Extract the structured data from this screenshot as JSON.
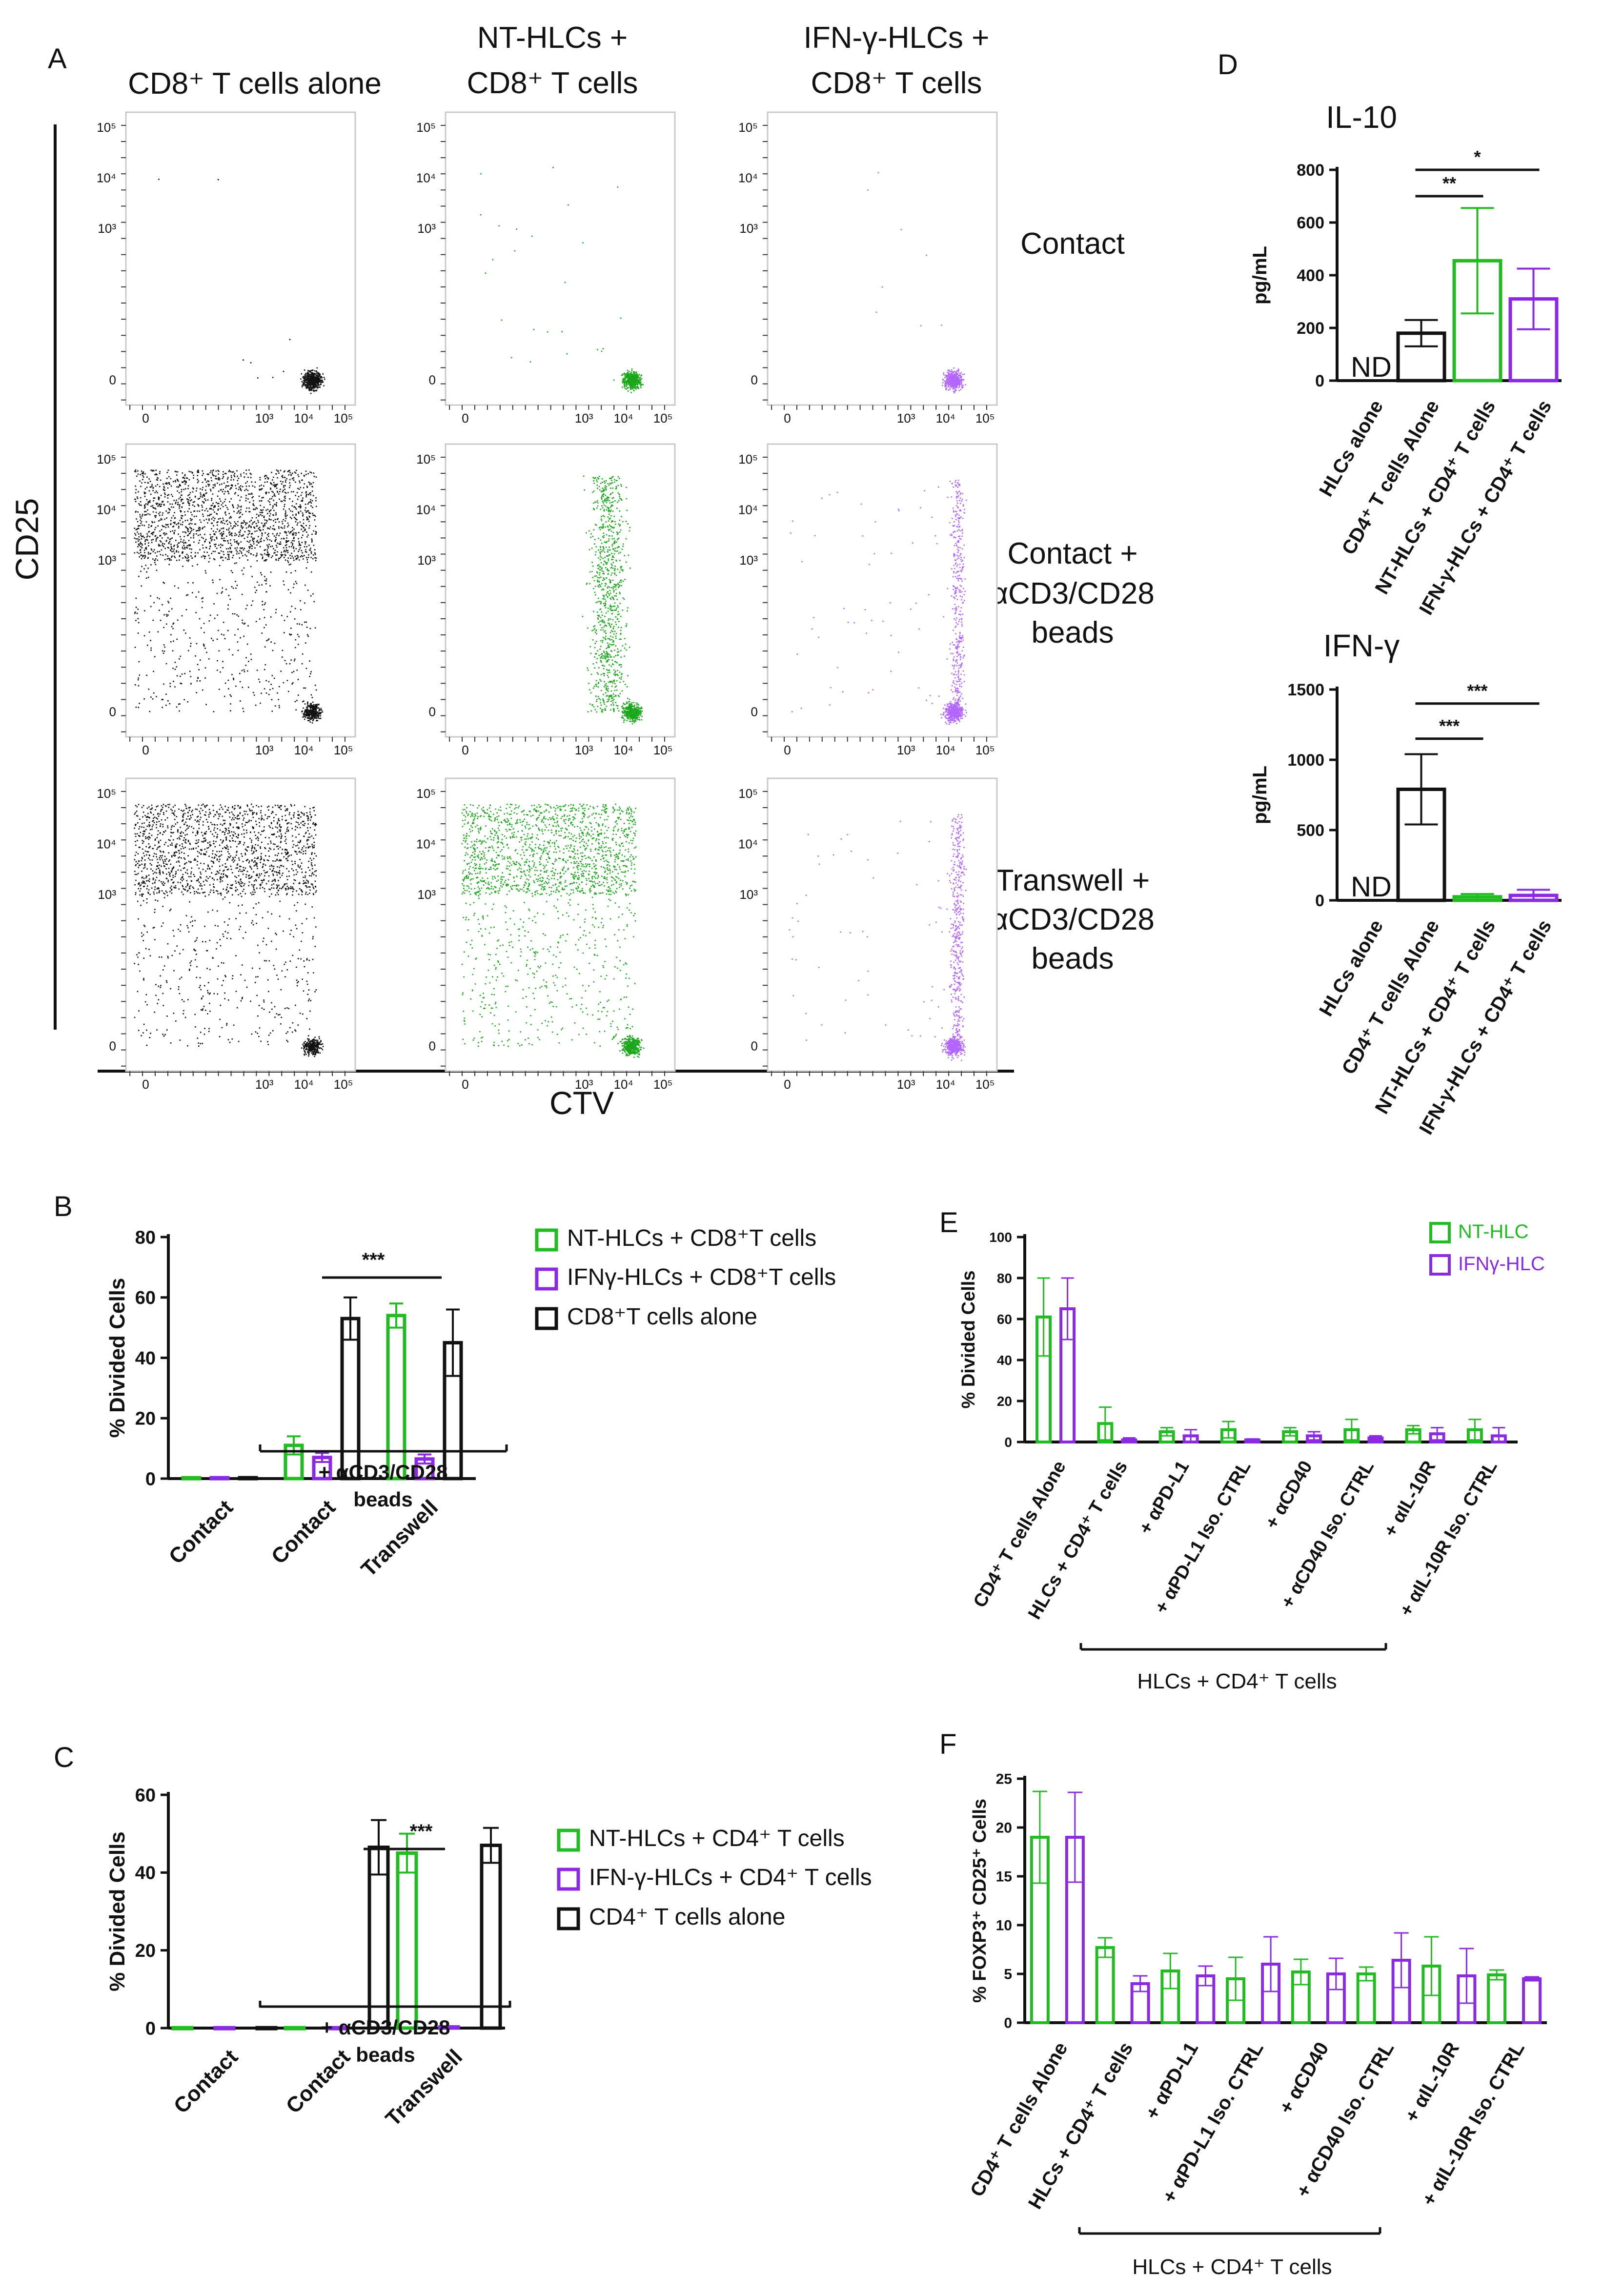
{
  "colors": {
    "black": "#111111",
    "green": "#22bb22",
    "purple": "#8a2be2",
    "dot_purple": "#b266ff",
    "dot_green": "#1aa81a"
  },
  "chart_data": [
    {
      "panel": "A",
      "type": "scatter",
      "description_label": "A",
      "column_titles": [
        [
          "CD8⁺ T cells alone"
        ],
        [
          "NT-HLCs +",
          "CD8⁺ T cells"
        ],
        [
          "IFN-γ-HLCs +",
          "CD8⁺ T cells"
        ]
      ],
      "row_labels": [
        [
          "Contact"
        ],
        [
          "Contact +",
          "αCD3/CD28",
          "beads"
        ],
        [
          "Transwell +",
          "αCD3/CD28",
          "beads"
        ]
      ],
      "xlabel": "CTV",
      "ylabel": "CD25",
      "x_ticks": [
        "0",
        "10³",
        "10⁴",
        "10⁵"
      ],
      "y_ticks": [
        "0",
        "10³",
        "10⁴",
        "10⁵"
      ],
      "xlim": [
        -0.5,
        5.3
      ],
      "ylim": [
        -0.5,
        5.3
      ],
      "series_colors": [
        "black",
        "green",
        "purple"
      ]
    },
    {
      "panel": "B",
      "type": "bar",
      "title": "",
      "ylabel": "% Divided Cells",
      "ylim": [
        0,
        80
      ],
      "yticks": [
        0,
        20,
        40,
        60,
        80
      ],
      "categories": [
        "Contact",
        "Contact",
        "Transwell"
      ],
      "bracket_label": [
        "+ αCD3/CD28",
        "beads"
      ],
      "series": [
        {
          "name": "NT-HLCs + CD8⁺T cells",
          "color": "green",
          "values": [
            0.3,
            11,
            54
          ],
          "errors": [
            0.2,
            3,
            4
          ]
        },
        {
          "name": "IFNγ-HLCs + CD8⁺T cells",
          "color": "purple",
          "values": [
            0.3,
            7,
            6.5
          ],
          "errors": [
            0.2,
            1.5,
            1.5
          ]
        },
        {
          "name": "CD8⁺T cells alone",
          "color": "black",
          "values": [
            0.3,
            53,
            45
          ],
          "errors": [
            0.2,
            7,
            11
          ]
        }
      ],
      "significance": {
        "label": "***",
        "from": "Contact",
        "to": "Transwell",
        "y": 66
      }
    },
    {
      "panel": "C",
      "type": "bar",
      "ylabel": "% Divided Cells",
      "ylim": [
        0,
        60
      ],
      "yticks": [
        0,
        20,
        40,
        60
      ],
      "categories": [
        "Contact",
        "Contact",
        "Transwell"
      ],
      "bracket_label": [
        "+ αCD3/CD28",
        "beads"
      ],
      "series": [
        {
          "name": "NT-HLCs + CD4⁺ T cells",
          "color": "green",
          "values": [
            0.1,
            0.1,
            45
          ],
          "errors": [
            0,
            0,
            5
          ]
        },
        {
          "name": "IFN-γ-HLCs + CD4⁺ T cells",
          "color": "purple",
          "values": [
            0.1,
            0.1,
            0.3
          ],
          "errors": [
            0,
            0,
            0.1
          ]
        },
        {
          "name": "CD4⁺ T cells alone",
          "color": "black",
          "values": [
            0.1,
            46.5,
            47
          ],
          "errors": [
            0,
            7,
            4.5
          ]
        }
      ],
      "significance": {
        "label": "***",
        "y": 58
      }
    },
    {
      "panel": "D",
      "title": "IL-10",
      "type": "bar",
      "ylabel": "pg/mL",
      "ylim": [
        0,
        800
      ],
      "yticks": [
        0,
        200,
        400,
        600,
        800
      ],
      "categories": [
        "HLCs alone",
        "CD4⁺ T cells Alone",
        "NT-HLCs + CD4⁺ T cells",
        "IFN-γ-HLCs + CD4⁺ T cells"
      ],
      "values": [
        0,
        180,
        455,
        310
      ],
      "errors": [
        0,
        50,
        200,
        115
      ],
      "colors": [
        "black",
        "black",
        "green",
        "purple"
      ],
      "nd_label": "ND",
      "significance": [
        {
          "label": "**",
          "from": 1,
          "to": 2,
          "y": 700
        },
        {
          "label": "*",
          "from": 1,
          "to": 3,
          "y": 800
        }
      ]
    },
    {
      "panel": "D2",
      "title": "IFN-γ",
      "type": "bar",
      "ylabel": "pg/mL",
      "ylim": [
        0,
        1500
      ],
      "yticks": [
        0,
        500,
        1000,
        1500
      ],
      "categories": [
        "HLCs alone",
        "CD4⁺ T cells Alone",
        "NT-HLCs + CD4⁺ T cells",
        "IFN-γ-HLCs + CD4⁺ T cells"
      ],
      "values": [
        0,
        790,
        25,
        35
      ],
      "errors": [
        0,
        250,
        20,
        40
      ],
      "colors": [
        "black",
        "black",
        "green",
        "purple"
      ],
      "nd_label": "ND",
      "significance": [
        {
          "label": "***",
          "from": 1,
          "to": 2,
          "y": 1150
        },
        {
          "label": "***",
          "from": 1,
          "to": 3,
          "y": 1400
        }
      ]
    },
    {
      "panel": "E",
      "type": "bar",
      "ylabel": "% Divided Cells",
      "ylim": [
        0,
        100
      ],
      "yticks": [
        0,
        20,
        40,
        60,
        80,
        100
      ],
      "categories": [
        "CD4⁺ T cells  Alone",
        "HLCs + CD4⁺ T cells",
        "+ αPD-L1",
        "+ αPD-L1 Iso. CTRL",
        "+ αCD40",
        "+ αCD40 Iso. CTRL",
        "+ αIL-10R",
        "+ αIL-10R Iso. CTRL"
      ],
      "series": [
        {
          "name": "NT-HLC",
          "color": "green",
          "values": [
            61,
            9,
            5,
            6,
            5,
            6,
            6,
            6
          ],
          "errors": [
            19,
            8,
            2,
            4,
            2,
            5,
            2,
            5
          ]
        },
        {
          "name": "IFNγ-HLC",
          "color": "purple",
          "values": [
            65,
            1,
            3,
            1,
            3,
            2,
            4,
            3
          ],
          "errors": [
            15,
            1,
            3,
            0.5,
            2,
            1,
            3,
            4
          ]
        }
      ],
      "bracket_label": "HLCs + CD4⁺ T cells"
    },
    {
      "panel": "F",
      "type": "bar",
      "ylabel": "% FOXP3⁺ CD25⁺ Cells",
      "ylim": [
        0,
        25
      ],
      "yticks": [
        0,
        5,
        10,
        15,
        20,
        25
      ],
      "categories": [
        "CD4⁺ T cells Alone",
        "HLCs + CD4⁺ T cells",
        "+ αPD-L1",
        "+ αPD-L1 Iso. CTRL",
        "+ αCD40",
        "+ αCD40 Iso. CTRL",
        "+ αIL-10R",
        "+ αIL-10R Iso. CTRL"
      ],
      "series": [
        {
          "name": "NT-HLC",
          "color": "green",
          "values": [
            19,
            7.7,
            5.3,
            4.5,
            5.2,
            5.0,
            5.8,
            4.9
          ],
          "errors": [
            4.7,
            1.0,
            1.8,
            2.2,
            1.3,
            0.7,
            3.0,
            0.5
          ]
        },
        {
          "name": "IFNγ-HLC",
          "color": "purple",
          "values": [
            19,
            4.0,
            4.8,
            6.0,
            5.0,
            6.4,
            4.8,
            4.5
          ],
          "errors": [
            4.6,
            0.8,
            1.0,
            2.8,
            1.6,
            2.8,
            2.8,
            0.2
          ]
        }
      ],
      "bracket_label": "HLCs + CD4⁺ T cells"
    }
  ]
}
